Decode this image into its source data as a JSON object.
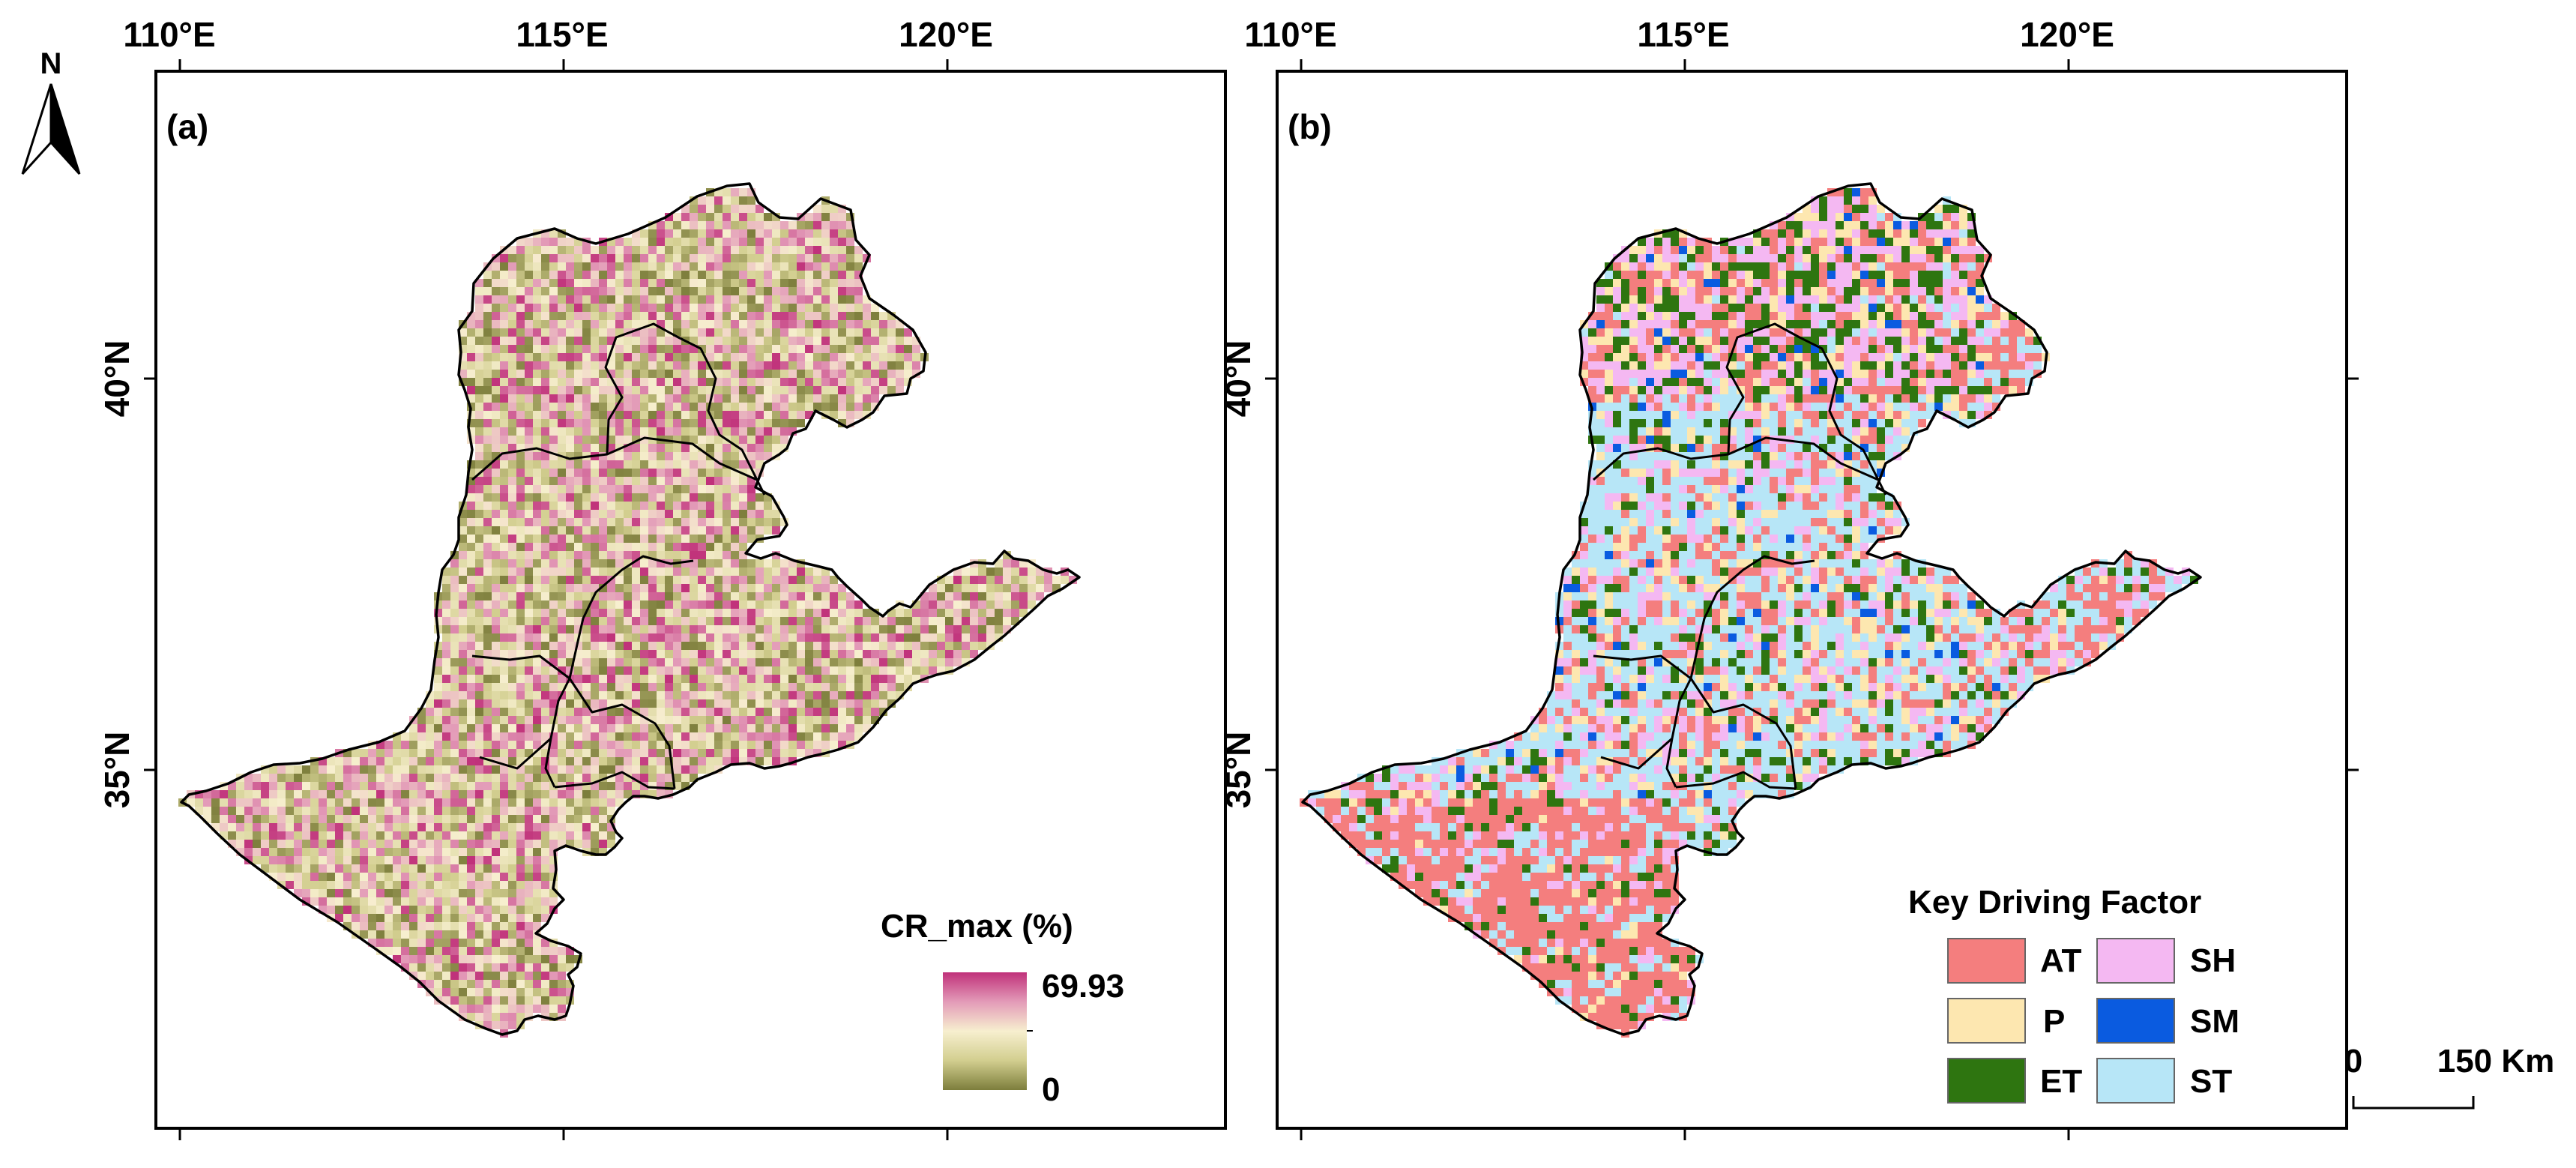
{
  "north_arrow": {
    "label": "N"
  },
  "panels": [
    {
      "id": "a",
      "tag": "(a)",
      "x_ticks": [
        "110°E",
        "115°E",
        "120°E"
      ],
      "y_ticks": [
        "40°N",
        "35°N"
      ],
      "legend": {
        "title": "CR_max (%)",
        "max_label": "69.93",
        "min_label": "0",
        "ramp_colors": [
          "#c0317a",
          "#e39bb8",
          "#f7efcf",
          "#d2ce8f",
          "#7d7e3c"
        ]
      }
    },
    {
      "id": "b",
      "tag": "(b)",
      "x_ticks": [
        "110°E",
        "115°E",
        "120°E"
      ],
      "y_ticks": [
        "40°N",
        "35°N"
      ],
      "legend": {
        "title": "Key Driving Factor",
        "items": [
          {
            "label": "AT",
            "color": "#f47e7e"
          },
          {
            "label": "P",
            "color": "#fde7b0"
          },
          {
            "label": "ET",
            "color": "#2e7510"
          },
          {
            "label": "SH",
            "color": "#f4b8f2"
          },
          {
            "label": "SM",
            "color": "#0a5be0"
          },
          {
            "label": "ST",
            "color": "#b7e6f7"
          }
        ]
      }
    }
  ],
  "scale_bar": {
    "start": "0",
    "end": "150 Km"
  }
}
